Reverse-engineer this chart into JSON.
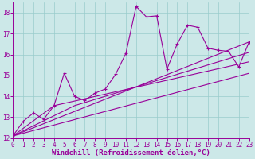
{
  "xlabel": "Windchill (Refroidissement éolien,°C)",
  "xlim": [
    0,
    23
  ],
  "ylim": [
    12,
    18.5
  ],
  "xticks": [
    0,
    1,
    2,
    3,
    4,
    5,
    6,
    7,
    8,
    9,
    10,
    11,
    12,
    13,
    14,
    15,
    16,
    17,
    18,
    19,
    20,
    21,
    22,
    23
  ],
  "yticks": [
    12,
    13,
    14,
    15,
    16,
    17,
    18
  ],
  "bg": "#cce8e8",
  "grid_color": "#99cccc",
  "lc": "#990099",
  "main_x": [
    0,
    1,
    2,
    3,
    4,
    5,
    6,
    7,
    8,
    9,
    10,
    11,
    12,
    13,
    14,
    15,
    16,
    17,
    18,
    19,
    20,
    21,
    22,
    23
  ],
  "main_y": [
    12.1,
    12.8,
    13.2,
    12.9,
    13.55,
    15.1,
    14.0,
    13.8,
    14.15,
    14.35,
    15.05,
    16.05,
    18.3,
    17.8,
    17.85,
    15.3,
    16.5,
    17.4,
    17.3,
    16.3,
    16.2,
    16.15,
    15.4,
    16.6
  ],
  "line1_x": [
    0,
    23
  ],
  "line1_y": [
    12.1,
    16.6
  ],
  "line2_x": [
    0,
    6,
    23
  ],
  "line2_y": [
    12.1,
    13.55,
    16.1
  ],
  "line3_x": [
    0,
    4,
    23
  ],
  "line3_y": [
    12.1,
    13.55,
    15.65
  ],
  "line4_x": [
    0,
    23
  ],
  "line4_y": [
    12.1,
    15.1
  ],
  "lw": 0.8,
  "ms": 2.5,
  "fs_tick": 5.5,
  "fs_label": 6.5
}
